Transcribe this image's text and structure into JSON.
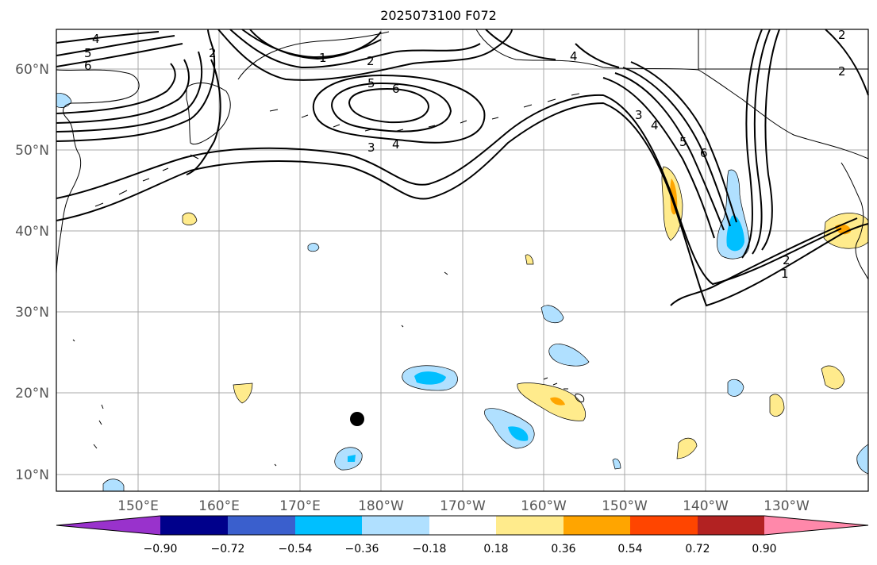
{
  "title": "2025073100 F072",
  "map": {
    "projection": "cylindrical",
    "lon_range": [
      "143°E",
      "121°W"
    ],
    "lat_range": [
      8,
      65
    ],
    "grid": true,
    "lat_labels": [
      "60°N",
      "50°N",
      "40°N",
      "30°N",
      "20°N",
      "10°N"
    ],
    "lon_labels": [
      "150°E",
      "160°E",
      "170°E",
      "180°W",
      "170°W",
      "160°W",
      "150°W",
      "140°W",
      "130°W"
    ],
    "marker": {
      "type": "black-dot",
      "lat": 16.8,
      "lon": "176.6°E"
    },
    "contour_labels": [
      "4",
      "5",
      "6",
      "2",
      "1",
      "2",
      "5",
      "6",
      "3",
      "4",
      "4",
      "3",
      "4",
      "5",
      "6",
      "2",
      "1",
      "2",
      "2"
    ]
  },
  "colorbar": {
    "ticks": [
      "−0.90",
      "−0.72",
      "−0.54",
      "−0.36",
      "−0.18",
      "0.18",
      "0.36",
      "0.54",
      "0.72",
      "0.90"
    ],
    "colors": [
      "#9932cc",
      "#00008b",
      "#3a5fcd",
      "#00bfff",
      "#b0e0ff",
      "#ffffff",
      "#ffeb8c",
      "#ffa500",
      "#ff4500",
      "#b22222",
      "#ff88aa"
    ],
    "extend": "both"
  }
}
